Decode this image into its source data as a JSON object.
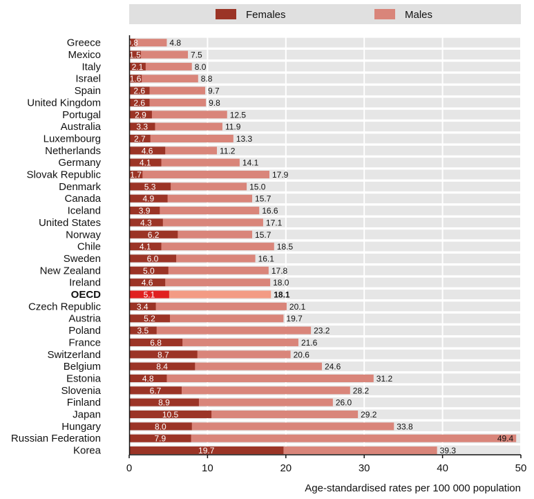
{
  "chart_data": {
    "type": "bar",
    "orientation": "horizontal",
    "stacking": "overlay",
    "categories": [
      "Greece",
      "Mexico",
      "Italy",
      "Israel",
      "Spain",
      "United Kingdom",
      "Portugal",
      "Australia",
      "Luxembourg",
      "Netherlands",
      "Germany",
      "Slovak Republic",
      "Denmark",
      "Canada",
      "Iceland",
      "United States",
      "Norway",
      "Chile",
      "Sweden",
      "New Zealand",
      "Ireland",
      "OECD",
      "Czech Republic",
      "Austria",
      "Poland",
      "France",
      "Switzerland",
      "Belgium",
      "Estonia",
      "Slovenia",
      "Finland",
      "Japan",
      "Hungary",
      "Russian Federation",
      "Korea"
    ],
    "highlight_category": "OECD",
    "series": [
      {
        "name": "Females",
        "color": "#9b3426",
        "highlight_color": "#e02020",
        "values": [
          0.8,
          1.5,
          2.1,
          1.6,
          2.6,
          2.6,
          2.9,
          3.3,
          2.7,
          4.6,
          4.1,
          1.7,
          5.3,
          4.9,
          3.9,
          4.3,
          6.2,
          4.1,
          6.0,
          5.0,
          4.6,
          5.1,
          3.4,
          5.2,
          3.5,
          6.8,
          8.7,
          8.4,
          4.8,
          6.7,
          8.9,
          10.5,
          8.0,
          7.9,
          19.7
        ]
      },
      {
        "name": "Males",
        "color": "#d9857a",
        "highlight_color": "#f39b84",
        "values": [
          4.8,
          7.5,
          8.0,
          8.8,
          9.7,
          9.8,
          12.5,
          11.9,
          13.3,
          11.2,
          14.1,
          17.9,
          15.0,
          15.7,
          16.6,
          17.1,
          15.7,
          18.5,
          16.1,
          17.8,
          18.0,
          18.1,
          20.1,
          19.7,
          23.2,
          21.6,
          20.6,
          24.6,
          31.2,
          28.2,
          26.0,
          29.2,
          33.8,
          49.4,
          39.3
        ]
      }
    ],
    "x_ticks": [
      0,
      10,
      20,
      30,
      40,
      50
    ],
    "xlim": [
      0,
      50
    ],
    "xlabel": "Age-standardised rates per 100 000 population",
    "ylabel": "",
    "title": "",
    "legend_position": "top",
    "grid": true,
    "grid_color": "#ffffff",
    "band_color": "#e6e6e6",
    "legend_band_color": "#e0e0e0"
  }
}
